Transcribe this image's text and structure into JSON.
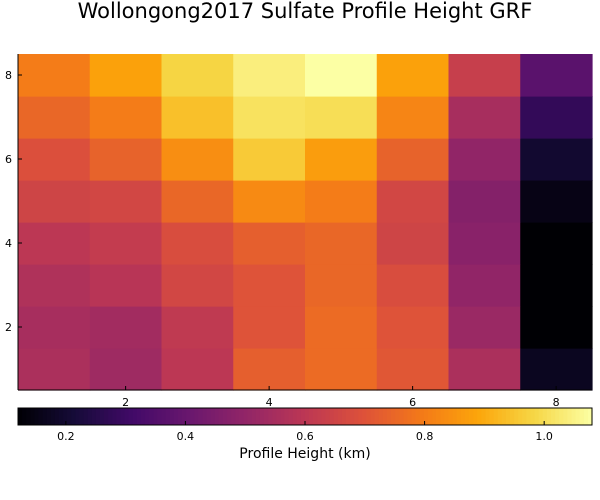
{
  "chart_data": {
    "type": "heatmap",
    "title": "Wollongong2017 Sulfate Profile Height GRF",
    "x": [
      1,
      2,
      3,
      4,
      5,
      6,
      7,
      8
    ],
    "y": [
      1,
      2,
      3,
      4,
      5,
      6,
      7,
      8
    ],
    "x_ticks": [
      "2",
      "4",
      "6",
      "8"
    ],
    "y_ticks": [
      "2",
      "4",
      "6",
      "8"
    ],
    "z": [
      [
        0.56,
        0.53,
        0.6,
        0.73,
        0.76,
        0.71,
        0.56,
        0.17
      ],
      [
        0.55,
        0.54,
        0.61,
        0.7,
        0.76,
        0.7,
        0.52,
        0.12
      ],
      [
        0.57,
        0.59,
        0.66,
        0.7,
        0.75,
        0.68,
        0.5,
        0.12
      ],
      [
        0.6,
        0.62,
        0.68,
        0.73,
        0.75,
        0.65,
        0.48,
        0.12
      ],
      [
        0.65,
        0.66,
        0.75,
        0.83,
        0.8,
        0.66,
        0.47,
        0.15
      ],
      [
        0.69,
        0.74,
        0.84,
        0.96,
        0.87,
        0.74,
        0.5,
        0.2
      ],
      [
        0.75,
        0.8,
        0.94,
        1.01,
        1.0,
        0.82,
        0.55,
        0.28
      ],
      [
        0.8,
        0.88,
        0.98,
        1.04,
        1.08,
        0.88,
        0.63,
        0.37
      ]
    ],
    "colorbar": {
      "label": "Profile Height (km)",
      "range": [
        0.12,
        1.08
      ],
      "ticks": [
        "0.2",
        "0.4",
        "0.6",
        "0.8",
        "1.0"
      ],
      "colormap": "inferno",
      "placement": "bottom"
    },
    "grid": false
  }
}
